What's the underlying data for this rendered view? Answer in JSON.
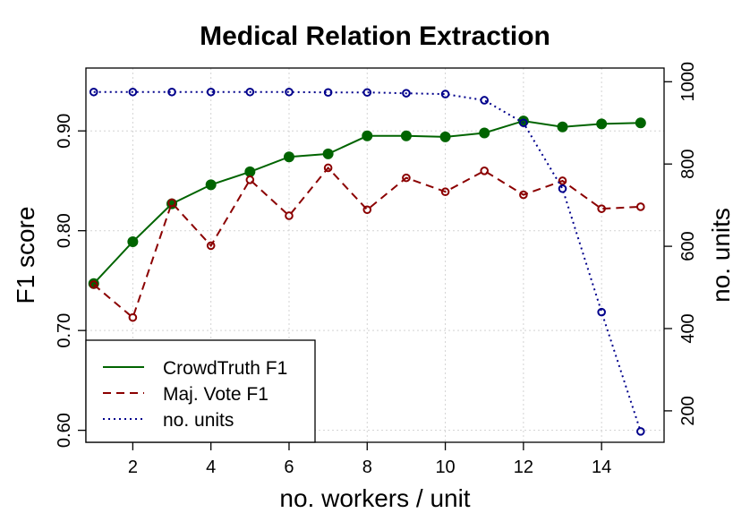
{
  "chart_data": {
    "type": "line",
    "title": "Medical Relation Extraction",
    "xlabel": "no. workers / unit",
    "ylabel": "F1 score",
    "y2label": "no. units",
    "xlim": [
      0.8,
      15.6
    ],
    "ylim": [
      0.588,
      0.963
    ],
    "y2lim": [
      123.6,
      1033.3
    ],
    "x_ticks": [
      "2",
      "4",
      "6",
      "8",
      "10",
      "12",
      "14"
    ],
    "y_ticks": [
      "0.60",
      "0.70",
      "0.80",
      "0.90"
    ],
    "y2_ticks": [
      "200",
      "400",
      "600",
      "800",
      "1000"
    ],
    "grid": true,
    "legend_position": "bottom-left",
    "x": [
      1,
      2,
      3,
      4,
      5,
      6,
      7,
      8,
      9,
      10,
      11,
      12,
      13,
      14,
      15
    ],
    "series": [
      {
        "name": "CrowdTruth F1",
        "axis": "left",
        "color": "#006400",
        "style": "solid",
        "marker": "filled-circle",
        "values": [
          0.747,
          0.789,
          0.827,
          0.846,
          0.859,
          0.874,
          0.877,
          0.895,
          0.895,
          0.894,
          0.898,
          0.91,
          0.904,
          0.907,
          0.908
        ]
      },
      {
        "name": "Maj. Vote F1",
        "axis": "left",
        "color": "#8b0000",
        "style": "dashed",
        "marker": "open-circle",
        "values": [
          0.746,
          0.713,
          0.828,
          0.785,
          0.851,
          0.815,
          0.863,
          0.821,
          0.853,
          0.839,
          0.86,
          0.836,
          0.85,
          0.822,
          0.824
        ]
      },
      {
        "name": "no. units",
        "axis": "right",
        "color": "#00008b",
        "style": "dotted",
        "marker": "open-circle",
        "values": [
          975,
          975,
          975,
          975,
          975,
          975,
          974,
          974,
          972,
          970,
          955,
          900,
          740,
          440,
          150
        ]
      }
    ]
  }
}
